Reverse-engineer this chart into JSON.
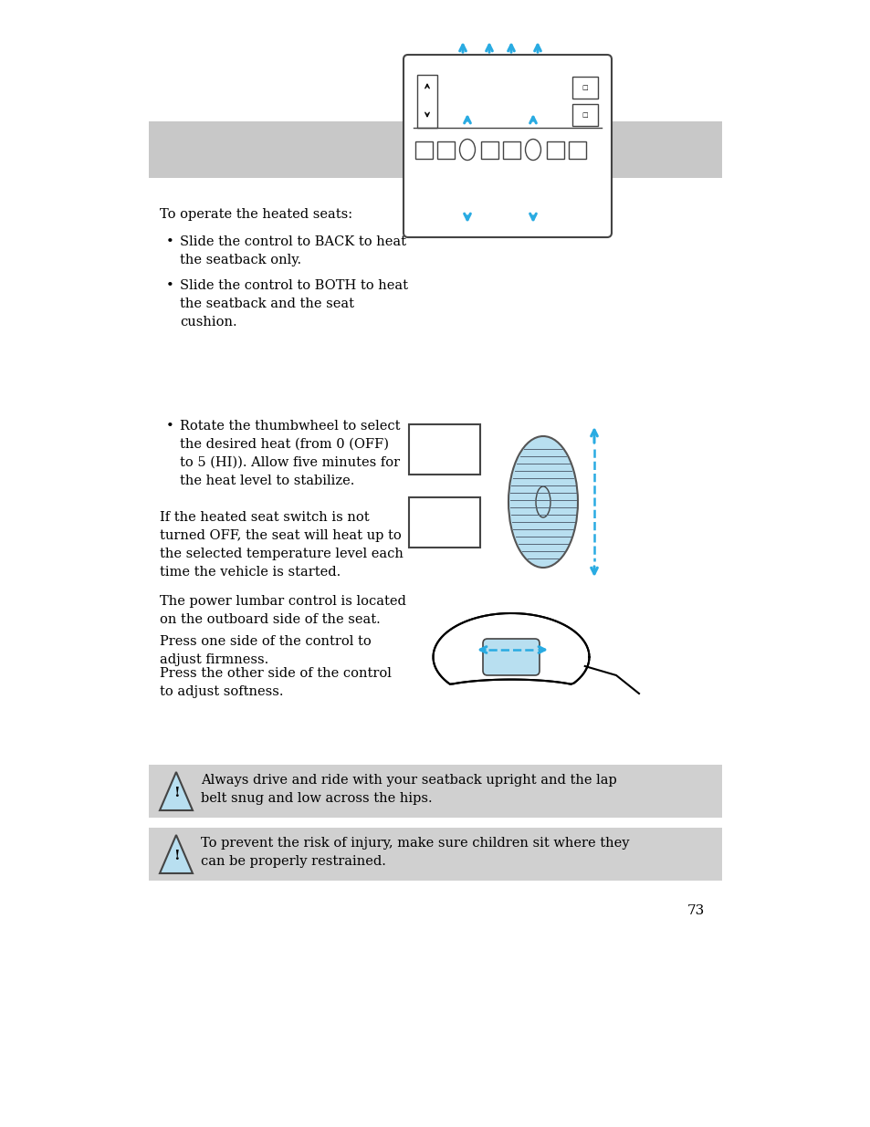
{
  "background_color": "#ffffff",
  "gray_banner_color": "#c8c8c8",
  "gray_box_color": "#d0d0d0",
  "cyan_color": "#29abe2",
  "text_color": "#000000",
  "page_number": "73",
  "warn1_text": "Always drive and ride with your seatback upright and the lap\nbelt snug and low across the hips.",
  "warn2_text": "To prevent the risk of injury, make sure children sit where they\ncan be properly restrained."
}
